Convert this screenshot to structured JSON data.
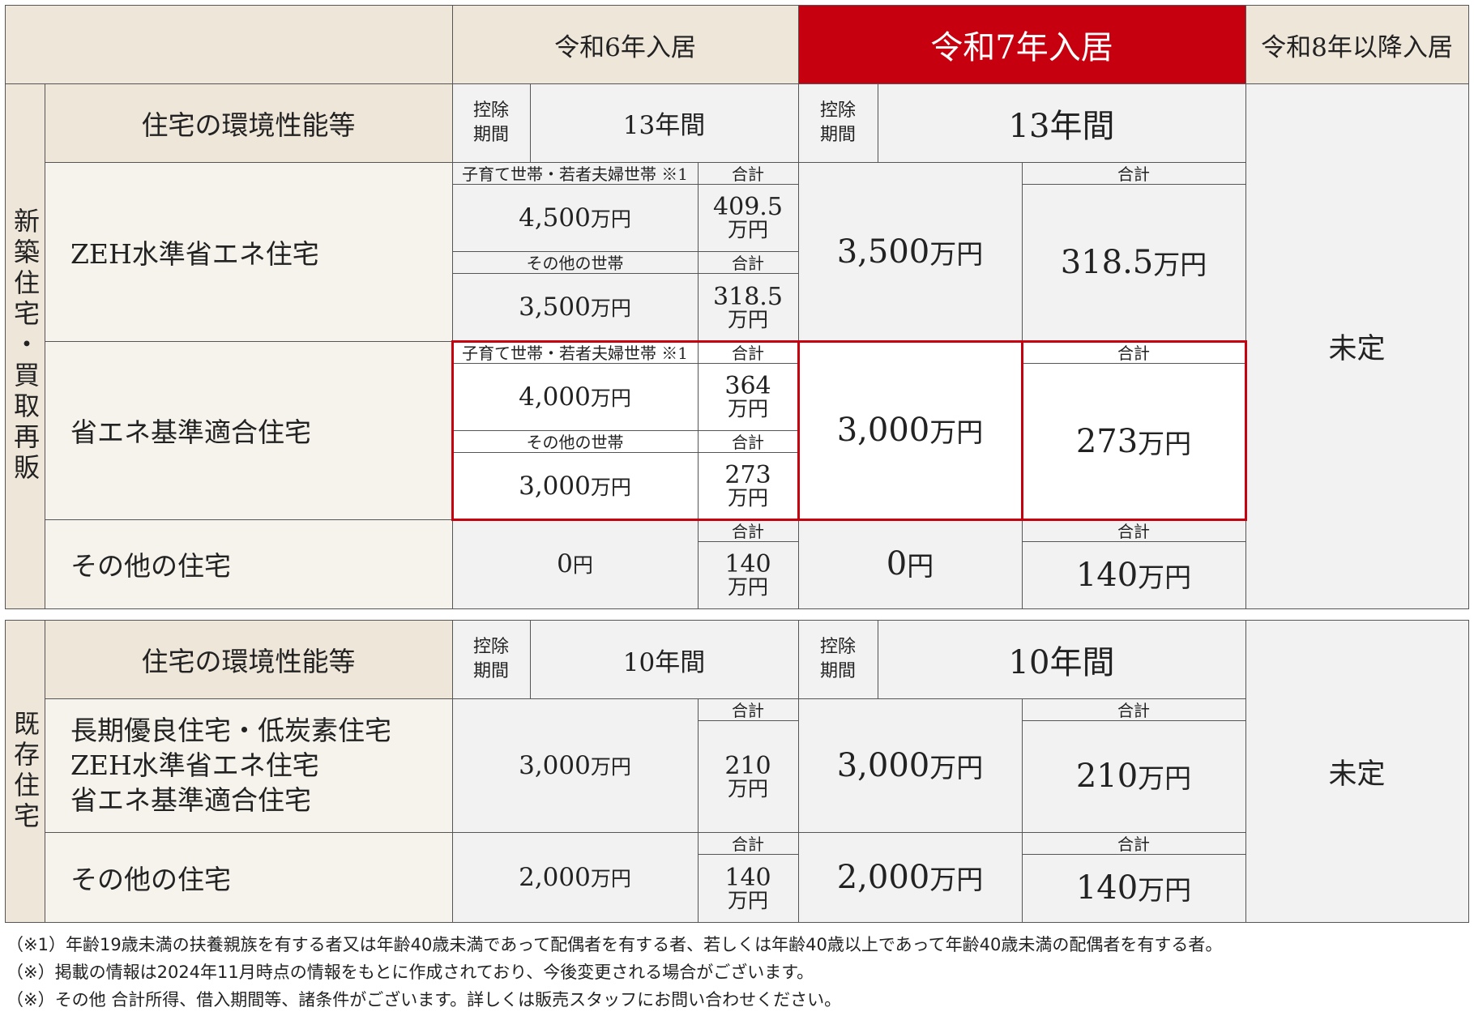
{
  "header": {
    "r6": "令和6年入居",
    "r7": "令和7年入居",
    "r8": "令和8年以降入居"
  },
  "new_section": {
    "side_label": "新築住宅・買取再販",
    "perf_label": "住宅の環境性能等",
    "deduction_label": "控除期間",
    "r6_period": "13年間",
    "r7_period": "13年間",
    "undecided": "未定",
    "rows": [
      {
        "label": "ZEH水準省エネ住宅",
        "r6": [
          {
            "group": "子育て世帯・若者夫婦世帯 ※1",
            "total_label": "合計",
            "amount_num": "4,500",
            "amount_unit": "万円",
            "total_num": "409.5",
            "total_unit": "万円"
          },
          {
            "group": "その他の世帯",
            "total_label": "合計",
            "amount_num": "3,500",
            "amount_unit": "万円",
            "total_num": "318.5",
            "total_unit": "万円"
          }
        ],
        "r7_amount_num": "3,500",
        "r7_amount_unit": "万円",
        "r7_total_label": "合計",
        "r7_total_num": "318.5",
        "r7_total_unit": "万円"
      },
      {
        "label": "省エネ基準適合住宅",
        "r6": [
          {
            "group": "子育て世帯・若者夫婦世帯 ※1",
            "total_label": "合計",
            "amount_num": "4,000",
            "amount_unit": "万円",
            "total_num": "364",
            "total_unit": "万円"
          },
          {
            "group": "その他の世帯",
            "total_label": "合計",
            "amount_num": "3,000",
            "amount_unit": "万円",
            "total_num": "273",
            "total_unit": "万円"
          }
        ],
        "r7_amount_num": "3,000",
        "r7_amount_unit": "万円",
        "r7_total_label": "合計",
        "r7_total_num": "273",
        "r7_total_unit": "万円"
      },
      {
        "label": "その他の住宅",
        "r6_amount_num": "0",
        "r6_amount_unit": "円",
        "r6_total_label": "合計",
        "r6_total_num": "140",
        "r6_total_unit": "万円",
        "r7_amount_num": "0",
        "r7_amount_unit": "円",
        "r7_total_label": "合計",
        "r7_total_num": "140",
        "r7_total_unit": "万円"
      }
    ]
  },
  "existing_section": {
    "side_label": "既存住宅",
    "perf_label": "住宅の環境性能等",
    "deduction_label": "控除期間",
    "r6_period": "10年間",
    "r7_period": "10年間",
    "undecided": "未定",
    "rows": [
      {
        "label_lines": [
          "長期優良住宅・低炭素住宅",
          "ZEH水準省エネ住宅",
          "省エネ基準適合住宅"
        ],
        "r6_amount_num": "3,000",
        "r6_amount_unit": "万円",
        "r6_total_label": "合計",
        "r6_total_num": "210",
        "r6_total_unit": "万円",
        "r7_amount_num": "3,000",
        "r7_amount_unit": "万円",
        "r7_total_label": "合計",
        "r7_total_num": "210",
        "r7_total_unit": "万円"
      },
      {
        "label": "その他の住宅",
        "r6_amount_num": "2,000",
        "r6_amount_unit": "万円",
        "r6_total_label": "合計",
        "r6_total_num": "140",
        "r6_total_unit": "万円",
        "r7_amount_num": "2,000",
        "r7_amount_unit": "万円",
        "r7_total_label": "合計",
        "r7_total_num": "140",
        "r7_total_unit": "万円"
      }
    ]
  },
  "notes": [
    "（※1）年齢19歳未満の扶養親族を有する者又は年齢40歳未満であって配偶者を有する者、若しくは年齢40歳以上であって年齢40歳未満の配偶者を有する者。",
    "（※）掲載の情報は2024年11月時点の情報をもとに作成されており、今後変更される場合がございます。",
    "（※）その他 合計所得、借入期間等、諸条件がございます。詳しくは販売スタッフにお問い合わせください。"
  ],
  "colors": {
    "accent_red": "#c6000f",
    "beige": "#efe6da",
    "cream": "#f6f2ec",
    "gray": "#f2f2f2"
  }
}
